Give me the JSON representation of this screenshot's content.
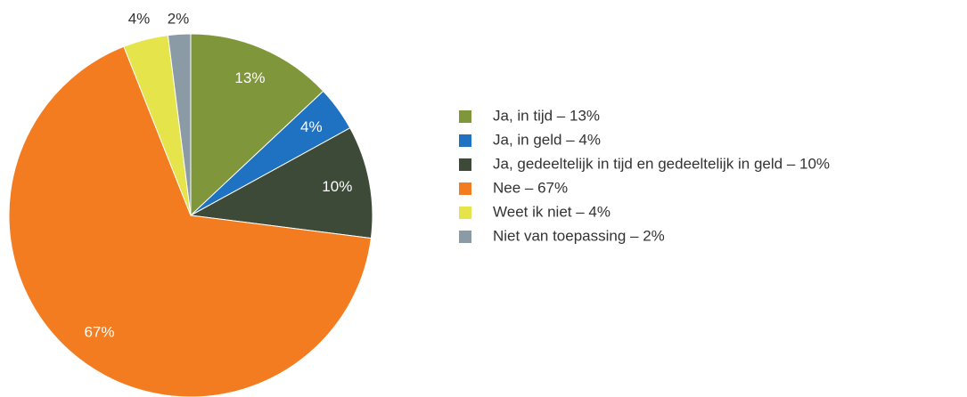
{
  "chart_data": {
    "type": "pie",
    "categories": [
      "Ja, in tijd – 13%",
      "Ja, in geld – 4%",
      "Ja, gedeeltelijk in tijd en gedeeltelijk in geld – 10%",
      "Nee – 67%",
      "Weet ik niet – 4%",
      "Niet van toepassing – 2%"
    ],
    "values": [
      13,
      4,
      10,
      67,
      4,
      2
    ],
    "value_labels": [
      "13%",
      "4%",
      "10%",
      "67%",
      "4%",
      "2%"
    ],
    "colors": [
      "#7f963b",
      "#1f72c1",
      "#3e4a38",
      "#f47c20",
      "#e6e44b",
      "#8a9ba6"
    ],
    "legend": "right"
  }
}
